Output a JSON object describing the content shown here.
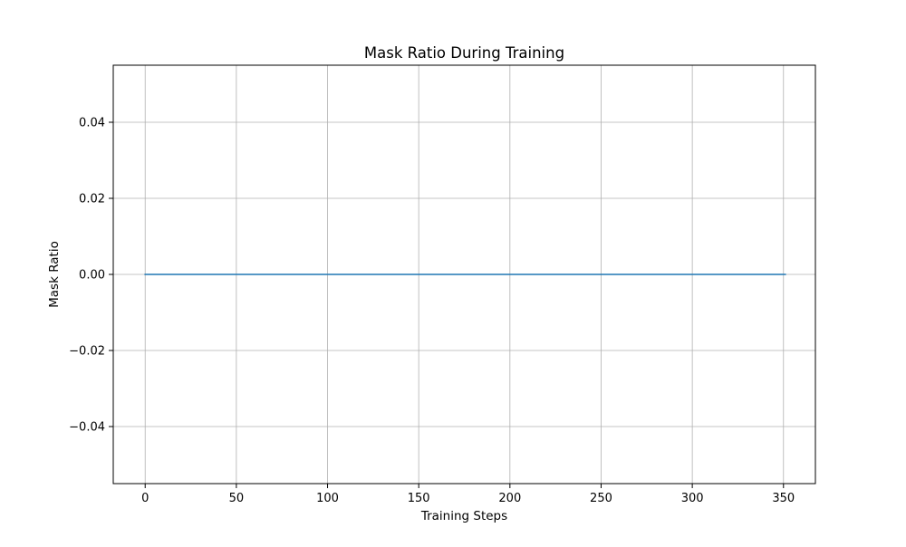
{
  "chart_data": {
    "type": "line",
    "title": "Mask Ratio During Training",
    "xlabel": "Training Steps",
    "ylabel": "Mask Ratio",
    "xlim": [
      -17.5,
      367.5
    ],
    "ylim": [
      -0.055,
      0.055
    ],
    "xticks": [
      0,
      50,
      100,
      150,
      200,
      250,
      300,
      350
    ],
    "xtick_labels": [
      "0",
      "50",
      "100",
      "150",
      "200",
      "250",
      "300",
      "350"
    ],
    "yticks": [
      -0.04,
      -0.02,
      0.0,
      0.02,
      0.04
    ],
    "ytick_labels": [
      "−0.04",
      "−0.02",
      "0.00",
      "0.02",
      "0.04"
    ],
    "grid": true,
    "series": [
      {
        "color": "#1f77b4",
        "x": [
          0,
          351
        ],
        "y": [
          0.0,
          0.0
        ]
      }
    ]
  }
}
